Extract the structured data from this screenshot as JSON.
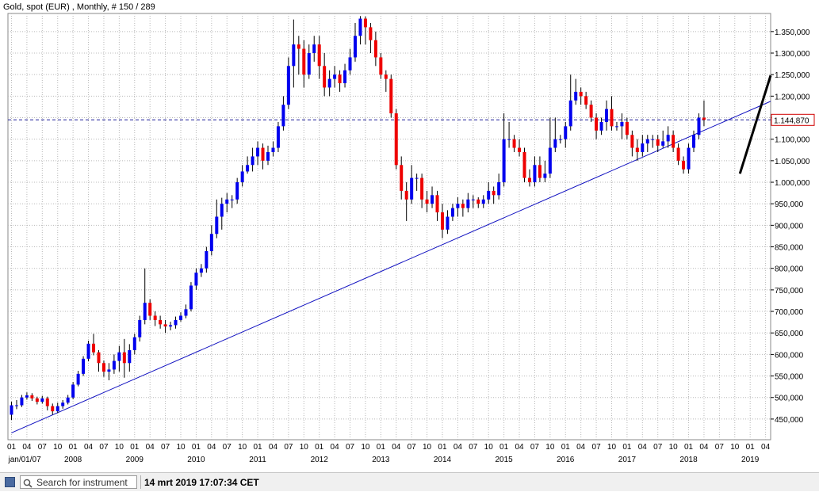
{
  "chart_data": {
    "type": "candlestick",
    "title": "Gold, spot (EUR) , Monthly, # 150 / 289",
    "last_price_label": "1.144,870",
    "y_ticks": [
      "450,000",
      "500,000",
      "550,000",
      "600,000",
      "650,000",
      "700,000",
      "750,000",
      "800,000",
      "850,000",
      "900,000",
      "950,000",
      "1.000,000",
      "1.050,000",
      "1.100,000",
      "1.150,000",
      "1.200,000",
      "1.250,000",
      "1.300,000",
      "1.350,000"
    ],
    "y_tick_values": [
      450,
      500,
      550,
      600,
      650,
      700,
      750,
      800,
      850,
      900,
      950,
      1000,
      1050,
      1100,
      1150,
      1200,
      1250,
      1300,
      1350
    ],
    "ylim": [
      402,
      1392
    ],
    "x_month_labels": [
      "01",
      "04",
      "07",
      "10"
    ],
    "year_labels": [
      "jan/01/07",
      "2008",
      "2009",
      "2010",
      "2011",
      "2012",
      "2013",
      "2014",
      "2015",
      "2016",
      "2017",
      "2018",
      "2019"
    ],
    "start": "2007-01",
    "close_prices": [
      482,
      482,
      500,
      505,
      498,
      490,
      498,
      480,
      468,
      480,
      488,
      500,
      530,
      555,
      590,
      625,
      605,
      580,
      560,
      565,
      585,
      605,
      580,
      610,
      640,
      680,
      720,
      690,
      680,
      670,
      665,
      668,
      680,
      690,
      705,
      760,
      790,
      800,
      840,
      880,
      920,
      950,
      960,
      960,
      1000,
      1025,
      1040,
      1060,
      1080,
      1050,
      1070,
      1080,
      1130,
      1180,
      1270,
      1320,
      1310,
      1250,
      1300,
      1320,
      1270,
      1220,
      1240,
      1250,
      1230,
      1260,
      1290,
      1340,
      1380,
      1360,
      1330,
      1290,
      1250,
      1240,
      1160,
      1040,
      980,
      960,
      1010,
      1010,
      960,
      950,
      970,
      930,
      890,
      920,
      940,
      950,
      940,
      960,
      960,
      950,
      960,
      980,
      970,
      1000,
      1100,
      1100,
      1080,
      1070,
      1010,
      1000,
      1040,
      1010,
      1020,
      1080,
      1100,
      1100,
      1130,
      1190,
      1210,
      1200,
      1180,
      1150,
      1120,
      1140,
      1170,
      1130,
      1130,
      1140,
      1110,
      1080,
      1070,
      1090,
      1100,
      1100,
      1085,
      1095,
      1110,
      1080,
      1050,
      1030,
      1080,
      1110,
      1150,
      1144.87
    ],
    "candles": [
      [
        460,
        482,
        448,
        490
      ],
      [
        482,
        482,
        473,
        494
      ],
      [
        482,
        500,
        478,
        506
      ],
      [
        500,
        505,
        495,
        512
      ],
      [
        505,
        498,
        492,
        510
      ],
      [
        498,
        490,
        484,
        502
      ],
      [
        490,
        498,
        486,
        504
      ],
      [
        498,
        480,
        470,
        502
      ],
      [
        480,
        468,
        460,
        486
      ],
      [
        468,
        480,
        464,
        488
      ],
      [
        480,
        488,
        474,
        494
      ],
      [
        488,
        500,
        484,
        506
      ],
      [
        500,
        530,
        496,
        536
      ],
      [
        530,
        555,
        526,
        562
      ],
      [
        555,
        590,
        550,
        596
      ],
      [
        590,
        625,
        584,
        632
      ],
      [
        625,
        605,
        598,
        648
      ],
      [
        605,
        580,
        560,
        610
      ],
      [
        580,
        560,
        548,
        586
      ],
      [
        560,
        565,
        540,
        580
      ],
      [
        565,
        585,
        555,
        600
      ],
      [
        585,
        605,
        560,
        620
      ],
      [
        605,
        580,
        546,
        636
      ],
      [
        580,
        610,
        560,
        624
      ],
      [
        610,
        640,
        600,
        648
      ],
      [
        640,
        680,
        630,
        690
      ],
      [
        680,
        720,
        670,
        800
      ],
      [
        720,
        690,
        680,
        728
      ],
      [
        690,
        680,
        666,
        700
      ],
      [
        680,
        670,
        660,
        690
      ],
      [
        670,
        665,
        650,
        680
      ],
      [
        665,
        668,
        656,
        676
      ],
      [
        668,
        680,
        660,
        688
      ],
      [
        680,
        690,
        676,
        698
      ],
      [
        690,
        705,
        684,
        716
      ],
      [
        705,
        760,
        700,
        768
      ],
      [
        760,
        790,
        750,
        800
      ],
      [
        790,
        800,
        780,
        810
      ],
      [
        800,
        840,
        790,
        850
      ],
      [
        840,
        880,
        830,
        900
      ],
      [
        880,
        920,
        870,
        960
      ],
      [
        920,
        950,
        890,
        964
      ],
      [
        950,
        960,
        930,
        975
      ],
      [
        960,
        960,
        940,
        970
      ],
      [
        960,
        1000,
        950,
        1010
      ],
      [
        1000,
        1025,
        990,
        1040
      ],
      [
        1025,
        1040,
        1020,
        1060
      ],
      [
        1040,
        1060,
        1025,
        1080
      ],
      [
        1060,
        1080,
        1040,
        1095
      ],
      [
        1080,
        1050,
        1030,
        1090
      ],
      [
        1050,
        1070,
        1040,
        1085
      ],
      [
        1070,
        1080,
        1060,
        1095
      ],
      [
        1080,
        1130,
        1070,
        1140
      ],
      [
        1130,
        1180,
        1120,
        1200
      ],
      [
        1180,
        1270,
        1170,
        1290
      ],
      [
        1270,
        1320,
        1220,
        1378
      ],
      [
        1320,
        1310,
        1250,
        1340
      ],
      [
        1310,
        1250,
        1220,
        1330
      ],
      [
        1250,
        1300,
        1240,
        1320
      ],
      [
        1300,
        1320,
        1280,
        1340
      ],
      [
        1320,
        1270,
        1240,
        1340
      ],
      [
        1270,
        1220,
        1200,
        1300
      ],
      [
        1220,
        1240,
        1200,
        1260
      ],
      [
        1240,
        1250,
        1220,
        1270
      ],
      [
        1250,
        1230,
        1210,
        1260
      ],
      [
        1230,
        1260,
        1220,
        1275
      ],
      [
        1260,
        1290,
        1250,
        1310
      ],
      [
        1290,
        1340,
        1280,
        1370
      ],
      [
        1340,
        1380,
        1320,
        1386
      ],
      [
        1380,
        1360,
        1320,
        1385
      ],
      [
        1360,
        1330,
        1300,
        1370
      ],
      [
        1330,
        1290,
        1270,
        1350
      ],
      [
        1290,
        1250,
        1240,
        1300
      ],
      [
        1250,
        1240,
        1210,
        1260
      ],
      [
        1240,
        1160,
        1150,
        1250
      ],
      [
        1160,
        1040,
        1030,
        1170
      ],
      [
        1040,
        980,
        960,
        1060
      ],
      [
        980,
        960,
        910,
        1000
      ],
      [
        960,
        1010,
        950,
        1040
      ],
      [
        1010,
        1010,
        980,
        1020
      ],
      [
        1010,
        960,
        940,
        1020
      ],
      [
        960,
        950,
        930,
        980
      ],
      [
        950,
        970,
        940,
        990
      ],
      [
        970,
        930,
        910,
        980
      ],
      [
        930,
        890,
        870,
        950
      ],
      [
        890,
        920,
        880,
        935
      ],
      [
        920,
        940,
        910,
        950
      ],
      [
        940,
        950,
        920,
        965
      ],
      [
        950,
        940,
        920,
        960
      ],
      [
        940,
        960,
        930,
        975
      ],
      [
        960,
        960,
        940,
        970
      ],
      [
        960,
        950,
        940,
        965
      ],
      [
        950,
        960,
        940,
        970
      ],
      [
        960,
        980,
        950,
        1000
      ],
      [
        980,
        970,
        950,
        990
      ],
      [
        970,
        1000,
        960,
        1020
      ],
      [
        1000,
        1100,
        990,
        1160
      ],
      [
        1100,
        1100,
        1080,
        1140
      ],
      [
        1100,
        1080,
        1070,
        1110
      ],
      [
        1080,
        1070,
        1060,
        1100
      ],
      [
        1070,
        1010,
        1000,
        1080
      ],
      [
        1010,
        1000,
        990,
        1030
      ],
      [
        1000,
        1040,
        990,
        1060
      ],
      [
        1040,
        1010,
        1000,
        1060
      ],
      [
        1010,
        1020,
        1000,
        1050
      ],
      [
        1020,
        1080,
        1010,
        1150
      ],
      [
        1080,
        1100,
        1070,
        1150
      ],
      [
        1100,
        1100,
        1090,
        1110
      ],
      [
        1100,
        1130,
        1080,
        1140
      ],
      [
        1130,
        1190,
        1120,
        1250
      ],
      [
        1190,
        1210,
        1180,
        1240
      ],
      [
        1210,
        1200,
        1180,
        1220
      ],
      [
        1200,
        1180,
        1170,
        1210
      ],
      [
        1180,
        1150,
        1140,
        1190
      ],
      [
        1150,
        1120,
        1100,
        1160
      ],
      [
        1120,
        1140,
        1110,
        1150
      ],
      [
        1140,
        1170,
        1120,
        1190
      ],
      [
        1170,
        1130,
        1120,
        1200
      ],
      [
        1130,
        1130,
        1120,
        1140
      ],
      [
        1130,
        1140,
        1100,
        1160
      ],
      [
        1140,
        1110,
        1100,
        1150
      ],
      [
        1110,
        1080,
        1060,
        1120
      ],
      [
        1080,
        1070,
        1050,
        1100
      ],
      [
        1070,
        1090,
        1060,
        1110
      ],
      [
        1090,
        1100,
        1070,
        1110
      ],
      [
        1100,
        1100,
        1080,
        1110
      ],
      [
        1100,
        1085,
        1070,
        1110
      ],
      [
        1085,
        1095,
        1080,
        1120
      ],
      [
        1095,
        1110,
        1080,
        1130
      ],
      [
        1110,
        1080,
        1070,
        1120
      ],
      [
        1080,
        1050,
        1040,
        1090
      ],
      [
        1050,
        1030,
        1020,
        1060
      ],
      [
        1030,
        1080,
        1020,
        1090
      ],
      [
        1080,
        1110,
        1070,
        1120
      ],
      [
        1110,
        1150,
        1100,
        1160
      ],
      [
        1150,
        1144.87,
        1130,
        1190
      ]
    ],
    "candles_note_order": "open,close,low,high",
    "trendlines": [
      {
        "from": [
          "2007-01",
          418
        ],
        "to": [
          "2019-12",
          1188
        ]
      },
      {
        "from": [
          "2018-11",
          1020
        ],
        "to": [
          "2019-12",
          1248
        ]
      }
    ],
    "grid": true,
    "colors": {
      "up": "#0000ee",
      "down": "#ee0000",
      "trendline": "#1010c0",
      "trendline_bold": "#000000",
      "grid": "#b8b8b8"
    }
  },
  "status_bar": {
    "search_placeholder": "Search for instrument",
    "timestamp": "14 mrt 2019 17:07:34 CET"
  }
}
